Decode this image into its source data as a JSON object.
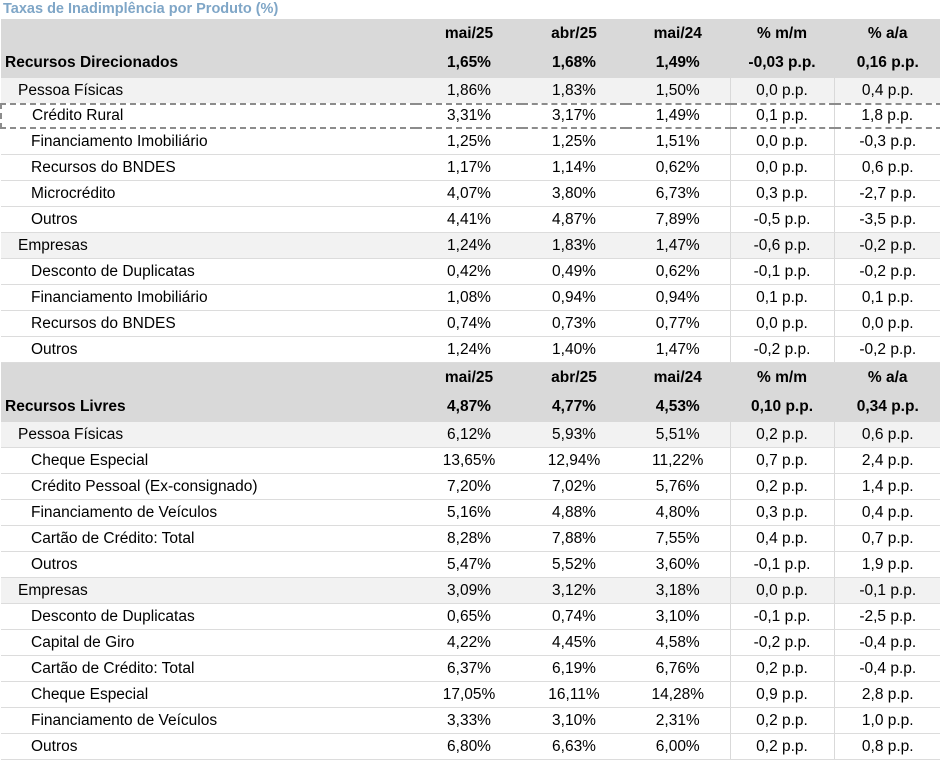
{
  "title": "Taxas de Inadimplência por Produto (%)",
  "columns": [
    "mai/25",
    "abr/25",
    "mai/24",
    "% m/m",
    "% a/a"
  ],
  "blocks": [
    {
      "rows": [
        {
          "level": 0,
          "kind": "section",
          "label": "Recursos Direcionados",
          "values": [
            "1,65%",
            "1,68%",
            "1,49%",
            "-0,03 p.p.",
            "0,16 p.p."
          ]
        },
        {
          "level": 1,
          "kind": "group",
          "label": "Pessoa Físicas",
          "values": [
            "1,86%",
            "1,83%",
            "1,50%",
            "0,0 p.p.",
            "0,4 p.p."
          ]
        },
        {
          "level": 2,
          "kind": "item",
          "label": "Crédito Rural",
          "values": [
            "3,31%",
            "3,17%",
            "1,49%",
            "0,1 p.p.",
            "1,8 p.p."
          ],
          "highlighted": true
        },
        {
          "level": 2,
          "kind": "item",
          "label": "Financiamento Imobiliário",
          "values": [
            "1,25%",
            "1,25%",
            "1,51%",
            "0,0 p.p.",
            "-0,3 p.p."
          ]
        },
        {
          "level": 2,
          "kind": "item",
          "label": "Recursos do BNDES",
          "values": [
            "1,17%",
            "1,14%",
            "0,62%",
            "0,0 p.p.",
            "0,6 p.p."
          ]
        },
        {
          "level": 2,
          "kind": "item",
          "label": "Microcrédito",
          "values": [
            "4,07%",
            "3,80%",
            "6,73%",
            "0,3 p.p.",
            "-2,7 p.p."
          ]
        },
        {
          "level": 2,
          "kind": "item",
          "label": "Outros",
          "values": [
            "4,41%",
            "4,87%",
            "7,89%",
            "-0,5 p.p.",
            "-3,5 p.p."
          ]
        },
        {
          "level": 1,
          "kind": "group",
          "label": "Empresas",
          "values": [
            "1,24%",
            "1,83%",
            "1,47%",
            "-0,6 p.p.",
            "-0,2 p.p."
          ]
        },
        {
          "level": 2,
          "kind": "item",
          "label": "Desconto de Duplicatas",
          "values": [
            "0,42%",
            "0,49%",
            "0,62%",
            "-0,1 p.p.",
            "-0,2 p.p."
          ]
        },
        {
          "level": 2,
          "kind": "item",
          "label": "Financiamento Imobiliário",
          "values": [
            "1,08%",
            "0,94%",
            "0,94%",
            "0,1 p.p.",
            "0,1 p.p."
          ]
        },
        {
          "level": 2,
          "kind": "item",
          "label": "Recursos do BNDES",
          "values": [
            "0,74%",
            "0,73%",
            "0,77%",
            "0,0 p.p.",
            "0,0 p.p."
          ]
        },
        {
          "level": 2,
          "kind": "item",
          "label": "Outros",
          "values": [
            "1,24%",
            "1,40%",
            "1,47%",
            "-0,2 p.p.",
            "-0,2 p.p."
          ]
        }
      ]
    },
    {
      "rows": [
        {
          "level": 0,
          "kind": "section",
          "label": "Recursos Livres",
          "values": [
            "4,87%",
            "4,77%",
            "4,53%",
            "0,10 p.p.",
            "0,34 p.p."
          ]
        },
        {
          "level": 1,
          "kind": "group",
          "label": "Pessoa Físicas",
          "values": [
            "6,12%",
            "5,93%",
            "5,51%",
            "0,2 p.p.",
            "0,6 p.p."
          ]
        },
        {
          "level": 2,
          "kind": "item",
          "label": "Cheque Especial",
          "values": [
            "13,65%",
            "12,94%",
            "11,22%",
            "0,7 p.p.",
            "2,4 p.p."
          ]
        },
        {
          "level": 2,
          "kind": "item",
          "label": "Crédito Pessoal (Ex-consignado)",
          "values": [
            "7,20%",
            "7,02%",
            "5,76%",
            "0,2 p.p.",
            "1,4 p.p."
          ]
        },
        {
          "level": 2,
          "kind": "item",
          "label": "Financiamento de Veículos",
          "values": [
            "5,16%",
            "4,88%",
            "4,80%",
            "0,3 p.p.",
            "0,4 p.p."
          ]
        },
        {
          "level": 2,
          "kind": "item",
          "label": "Cartão de Crédito: Total",
          "values": [
            "8,28%",
            "7,88%",
            "7,55%",
            "0,4 p.p.",
            "0,7 p.p."
          ]
        },
        {
          "level": 2,
          "kind": "item",
          "label": "Outros",
          "values": [
            "5,47%",
            "5,52%",
            "3,60%",
            "-0,1 p.p.",
            "1,9 p.p."
          ]
        },
        {
          "level": 1,
          "kind": "group",
          "label": "Empresas",
          "values": [
            "3,09%",
            "3,12%",
            "3,18%",
            "0,0 p.p.",
            "-0,1 p.p."
          ]
        },
        {
          "level": 2,
          "kind": "item",
          "label": "Desconto de Duplicatas",
          "values": [
            "0,65%",
            "0,74%",
            "3,10%",
            "-0,1 p.p.",
            "-2,5 p.p."
          ]
        },
        {
          "level": 2,
          "kind": "item",
          "label": "Capital de Giro",
          "values": [
            "4,22%",
            "4,45%",
            "4,58%",
            "-0,2 p.p.",
            "-0,4 p.p."
          ]
        },
        {
          "level": 2,
          "kind": "item",
          "label": "Cartão de Crédito: Total",
          "values": [
            "6,37%",
            "6,19%",
            "6,76%",
            "0,2 p.p.",
            "-0,4 p.p."
          ]
        },
        {
          "level": 2,
          "kind": "item",
          "label": "Cheque Especial",
          "values": [
            "17,05%",
            "16,11%",
            "14,28%",
            "0,9 p.p.",
            "2,8 p.p."
          ]
        },
        {
          "level": 2,
          "kind": "item",
          "label": "Financiamento de Veículos",
          "values": [
            "3,33%",
            "3,10%",
            "2,31%",
            "0,2 p.p.",
            "1,0 p.p."
          ]
        },
        {
          "level": 2,
          "kind": "item",
          "label": "Outros",
          "values": [
            "6,80%",
            "6,63%",
            "6,00%",
            "0,2 p.p.",
            "0,8 p.p."
          ]
        }
      ]
    }
  ]
}
